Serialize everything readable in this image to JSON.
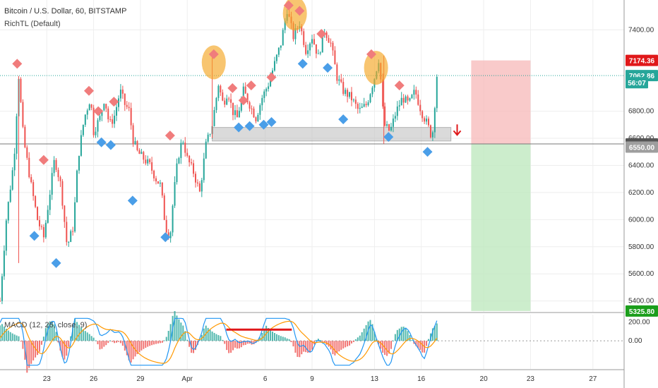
{
  "header": {
    "title": "Bitcoin / U.S. Dollar, 60, BITSTAMP",
    "indicator": "RichTL (Default)",
    "macd_label": "MACD (12, 26, close, 9)"
  },
  "colors": {
    "up": "#26a69a",
    "down": "#ef5350",
    "sell_marker": "#f07c7c",
    "buy_marker": "#4a9ee8",
    "highlight_circle": "#f5a623",
    "stop_zone": "#f7b8b8",
    "target_zone": "#bfe8bf",
    "support_box": "#bdbdbd",
    "macd_line": "#2196f3",
    "signal_line": "#ff9800",
    "divergence_line": "#e0181a",
    "price_line": "#26a69a"
  },
  "chart_data": {
    "type": "candlestick",
    "symbol": "Bitcoin / U.S. Dollar",
    "interval": "60",
    "exchange": "BITSTAMP",
    "ylim": [
      5320,
      7620
    ],
    "y_ticks": [
      5400,
      5600,
      5800,
      6000,
      6200,
      6400,
      6600,
      6800,
      7400
    ],
    "y_tick_labels": [
      "5400.00",
      "5600.00",
      "5800.00",
      "6000.00",
      "6200.00",
      "6400.00",
      "6600.00",
      "6800.00",
      "7400.00"
    ],
    "x_ticks": [
      "23",
      "26",
      "29",
      "Apr",
      "6",
      "9",
      "13",
      "16",
      "20",
      "23",
      "27"
    ],
    "x_tick_days": [
      3,
      6,
      9,
      12,
      17,
      20,
      24,
      27,
      31,
      34,
      38
    ],
    "x_range_days": [
      0,
      40
    ],
    "close_path": [
      [
        0.0,
        5400
      ],
      [
        0.4,
        6000
      ],
      [
        0.9,
        6450
      ],
      [
        1.2,
        7060
      ],
      [
        1.5,
        6600
      ],
      [
        2.0,
        6250
      ],
      [
        2.4,
        6000
      ],
      [
        2.8,
        5870
      ],
      [
        3.2,
        6200
      ],
      [
        3.5,
        6450
      ],
      [
        3.9,
        6250
      ],
      [
        4.3,
        5800
      ],
      [
        4.7,
        5950
      ],
      [
        5.0,
        6450
      ],
      [
        5.4,
        6750
      ],
      [
        5.8,
        6900
      ],
      [
        6.0,
        6650
      ],
      [
        6.4,
        6750
      ],
      [
        6.7,
        6900
      ],
      [
        7.0,
        6700
      ],
      [
        7.3,
        6750
      ],
      [
        7.7,
        6950
      ],
      [
        8.0,
        6850
      ],
      [
        8.3,
        6800
      ],
      [
        8.5,
        6600
      ],
      [
        8.8,
        6500
      ],
      [
        9.2,
        6450
      ],
      [
        9.6,
        6400
      ],
      [
        10.0,
        6300
      ],
      [
        10.3,
        6250
      ],
      [
        10.6,
        5950
      ],
      [
        10.9,
        5870
      ],
      [
        11.1,
        6150
      ],
      [
        11.4,
        6450
      ],
      [
        11.7,
        6600
      ],
      [
        12.0,
        6450
      ],
      [
        12.4,
        6350
      ],
      [
        12.8,
        6200
      ],
      [
        13.2,
        6550
      ],
      [
        13.6,
        6700
      ],
      [
        14.0,
        7000
      ],
      [
        14.3,
        6850
      ],
      [
        14.6,
        6950
      ],
      [
        14.9,
        6800
      ],
      [
        15.2,
        6750
      ],
      [
        15.6,
        6950
      ],
      [
        16.0,
        6850
      ],
      [
        16.4,
        6750
      ],
      [
        16.8,
        6900
      ],
      [
        17.2,
        7000
      ],
      [
        17.6,
        7150
      ],
      [
        18.0,
        7300
      ],
      [
        18.4,
        7550
      ],
      [
        18.8,
        7350
      ],
      [
        19.2,
        7450
      ],
      [
        19.6,
        7250
      ],
      [
        20.0,
        7350
      ],
      [
        20.4,
        7200
      ],
      [
        20.8,
        7400
      ],
      [
        21.2,
        7300
      ],
      [
        21.6,
        7050
      ],
      [
        22.0,
        6950
      ],
      [
        22.5,
        6900
      ],
      [
        23.0,
        6800
      ],
      [
        23.5,
        6850
      ],
      [
        24.0,
        7050
      ],
      [
        24.3,
        7200
      ],
      [
        24.6,
        6700
      ],
      [
        25.0,
        6650
      ],
      [
        25.4,
        6800
      ],
      [
        25.8,
        6900
      ],
      [
        26.2,
        6850
      ],
      [
        26.6,
        6950
      ],
      [
        27.0,
        6800
      ],
      [
        27.4,
        6700
      ],
      [
        27.7,
        6600
      ],
      [
        28.0,
        7062.86
      ]
    ],
    "sell_markers": [
      [
        1.1,
        7150
      ],
      [
        2.8,
        6440
      ],
      [
        5.7,
        6950
      ],
      [
        6.3,
        6800
      ],
      [
        7.3,
        6870
      ],
      [
        10.9,
        6620
      ],
      [
        13.7,
        7220
      ],
      [
        14.9,
        6970
      ],
      [
        15.6,
        6880
      ],
      [
        16.1,
        6990
      ],
      [
        17.4,
        7050
      ],
      [
        18.5,
        7580
      ],
      [
        19.2,
        7540
      ],
      [
        20.6,
        7370
      ],
      [
        23.8,
        7220
      ],
      [
        25.6,
        6990
      ]
    ],
    "buy_markers": [
      [
        2.2,
        5880
      ],
      [
        3.6,
        5680
      ],
      [
        6.5,
        6570
      ],
      [
        7.1,
        6550
      ],
      [
        8.5,
        6140
      ],
      [
        10.6,
        5870
      ],
      [
        15.3,
        6680
      ],
      [
        16.0,
        6690
      ],
      [
        16.9,
        6700
      ],
      [
        17.4,
        6720
      ],
      [
        19.4,
        7150
      ],
      [
        21.0,
        7120
      ],
      [
        22.0,
        6740
      ],
      [
        24.9,
        6610
      ],
      [
        27.4,
        6500
      ]
    ],
    "highlight_circles": [
      [
        13.7,
        7160
      ],
      [
        18.9,
        7520
      ],
      [
        24.1,
        7120
      ]
    ],
    "support_box": {
      "x0": 13.6,
      "x1": 28.9,
      "y0": 6580,
      "y1": 6680
    },
    "stop_zone": {
      "x0": 30.2,
      "x1": 34.0,
      "y0": 6558.29,
      "y1": 7174.36
    },
    "target_zone": {
      "x0": 30.2,
      "x1": 34.0,
      "y0": 5325.8,
      "y1": 6558.29
    },
    "entry_arrow": {
      "x": 29.3,
      "y": 6640
    },
    "price_tags": [
      {
        "label": "7174.36",
        "value": 7174.36,
        "bg": "#e0181a"
      },
      {
        "label": "7062.86",
        "value": 7062.86,
        "bg": "#26a69a"
      },
      {
        "label": "56:07",
        "value": 7010,
        "bg": "#26a69a"
      },
      {
        "label": "6558.29",
        "value": 6558.29,
        "bg": "#555555"
      },
      {
        "label": "6550.00",
        "value": 6535,
        "bg": "#9e9e9e"
      },
      {
        "label": "5325.80",
        "value": 5325.8,
        "bg": "#1b9e1b"
      }
    ],
    "horizontal_lines": [
      {
        "value": 7062.86,
        "style": "dotted",
        "color": "#26a69a"
      },
      {
        "value": 6558.29,
        "style": "solid",
        "color": "#777777"
      }
    ],
    "macd": {
      "label": "MACD (12, 26, close, 9)",
      "ylim": [
        -300,
        280
      ],
      "y_ticks": [
        0,
        200
      ],
      "y_tick_labels": [
        "0.00",
        "200.00"
      ],
      "divergence_line": {
        "x0": 14.5,
        "x1": 18.7,
        "y": 120
      }
    }
  }
}
